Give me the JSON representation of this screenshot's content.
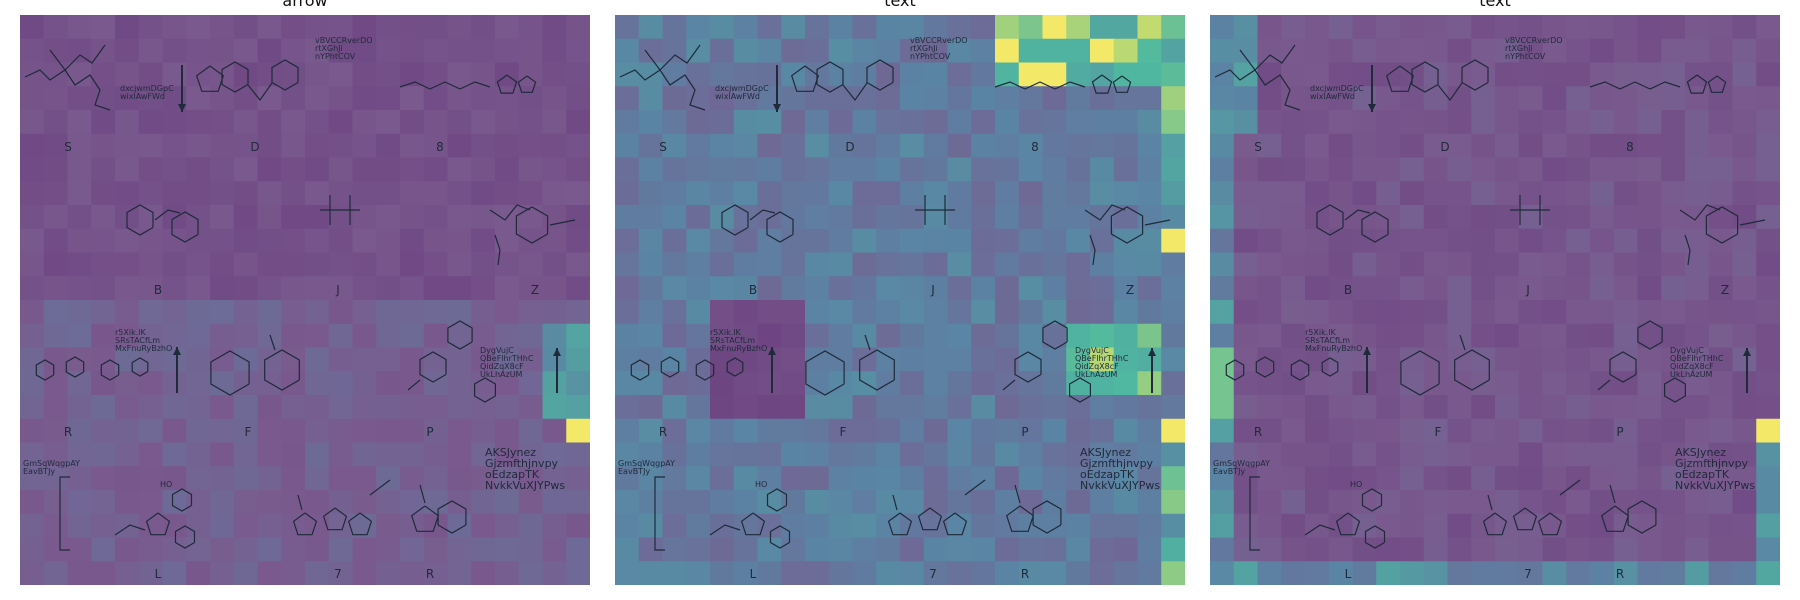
{
  "panels": [
    {
      "title": "arrow",
      "scheme": "arrow"
    },
    {
      "title": "text",
      "scheme": "text1"
    },
    {
      "title": "text",
      "scheme": "text2"
    }
  ],
  "molecule_labels": [
    "S",
    "D",
    "8",
    "B",
    "J",
    "Z",
    "R",
    "F",
    "P",
    "L",
    "7",
    "R"
  ],
  "notes": [
    "dxcjwmDGpC\nwixlAwFWd",
    "vBVCCRverDO\nrtXGhJi\nnYPhtCOV",
    "r5Xik.lK\nSRsTACfLm\nMxFnuRyBzhO",
    "DygVujC\nQBeFlhrTHhC\nQidZqX8cF\nUkLhAzUM",
    "GmSqWqgpAY\nEavBTJy",
    "AKSJynez\nGjzmfthjnvpy\noEdzapTK\nNvkkVuXJYPws",
    "HO"
  ],
  "colors": {
    "low": "#7a5a8e",
    "lowDark": "#6a3f7e",
    "mid": "#5a84a4",
    "high": "#53a8a0",
    "teal": "#4fb8a0",
    "yellow": "#f3e868",
    "lime": "#c5dc6e",
    "ink": "#1f2a3a"
  }
}
